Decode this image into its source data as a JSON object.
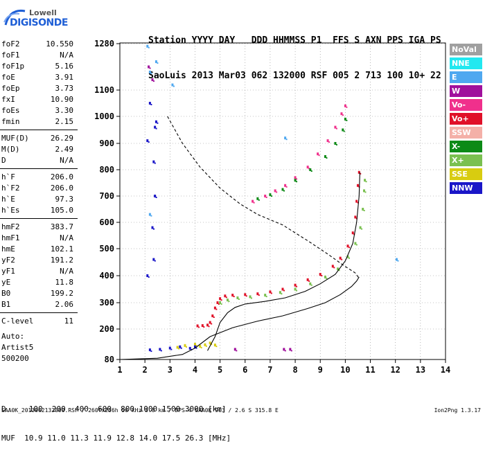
{
  "logo": {
    "line1": "Lowell",
    "line2": "DIGISONDE"
  },
  "header": {
    "labels": "Station YYYY DAY   DDD HHMMSS P1  FFS S AXN PPS IGA PS",
    "values": "SaoLuis 2013 Mar03 062 132000 RSF 005 2 713 100 10+ 22"
  },
  "params": [
    {
      "label": "foF2",
      "value": "10.550"
    },
    {
      "label": "foF1",
      "value": "N/A"
    },
    {
      "label": "foF1p",
      "value": "5.16"
    },
    {
      "label": "foE",
      "value": "3.91"
    },
    {
      "label": "foEp",
      "value": "3.73"
    },
    {
      "label": "fxI",
      "value": "10.90"
    },
    {
      "label": "foEs",
      "value": "3.30"
    },
    {
      "label": "fmin",
      "value": "2.15"
    },
    {
      "sep": true
    },
    {
      "label": "MUF(D)",
      "value": "26.29"
    },
    {
      "label": "M(D)",
      "value": "2.49"
    },
    {
      "label": "D",
      "value": "N/A"
    },
    {
      "sep": true
    },
    {
      "label": "h`F",
      "value": "206.0"
    },
    {
      "label": "h`F2",
      "value": "206.0"
    },
    {
      "label": "h`E",
      "value": "97.3"
    },
    {
      "label": "h`Es",
      "value": "105.0"
    },
    {
      "sep": true
    },
    {
      "label": "hmF2",
      "value": "383.7"
    },
    {
      "label": "hmF1",
      "value": "N/A"
    },
    {
      "label": "hmE",
      "value": "102.1"
    },
    {
      "label": "yF2",
      "value": "191.2"
    },
    {
      "label": "yF1",
      "value": "N/A"
    },
    {
      "label": "yE",
      "value": "11.8"
    },
    {
      "label": "B0",
      "value": "199.2"
    },
    {
      "label": "B1",
      "value": "2.06"
    },
    {
      "sep": true
    },
    {
      "label": "C-level",
      "value": "11"
    }
  ],
  "auto": [
    "Auto:",
    "Artist5",
    "500200"
  ],
  "legend": [
    {
      "label": "NoVal",
      "color": "#a0a0a0"
    },
    {
      "label": "NNE",
      "color": "#22e8f0"
    },
    {
      "label": "E",
      "color": "#4fa8f0"
    },
    {
      "label": "W",
      "color": "#a0109c"
    },
    {
      "label": "Vo-",
      "color": "#f0308c"
    },
    {
      "label": "Vo+",
      "color": "#e01028"
    },
    {
      "label": "SSW",
      "color": "#f4b0a8"
    },
    {
      "label": "X-",
      "color": "#0c8a16"
    },
    {
      "label": "X+",
      "color": "#7ac050"
    },
    {
      "label": "SSE",
      "color": "#d8cc10"
    },
    {
      "label": "NNW",
      "color": "#1a16c8"
    }
  ],
  "footer": {
    "d_row": "D     100  200  400  600  800 1000 1500 3000 [km]",
    "muf_row": "MUF  10.9 11.0 11.3 11.9 12.8 14.0 17.5 26.3 [MHz]",
    "info": "SAA0K_2013062132000.RSF / 260fx256h 50 kHz 5.0 km / DPS-4 SAA0K 903 / 2.6 S 315.8 E",
    "version": "Ion2Png 1.3.17"
  },
  "chart_data": {
    "type": "scatter",
    "xlim": [
      1,
      14
    ],
    "ylim": [
      80,
      1280
    ],
    "x_ticks": [
      "1",
      "2",
      "3",
      "4",
      "5",
      "6",
      "7",
      "8",
      "9",
      "10",
      "11",
      "12",
      "13",
      "14"
    ],
    "y_ticks": [
      "80",
      "200",
      "300",
      "400",
      "500",
      "600",
      "700",
      "800",
      "900",
      "1000",
      "1100",
      "1280"
    ],
    "grid": true,
    "series": [
      {
        "name": "Vo+",
        "color": "#e01028",
        "style": "dots",
        "points": [
          [
            4.1,
            212
          ],
          [
            4.3,
            213
          ],
          [
            4.5,
            215
          ],
          [
            4.6,
            225
          ],
          [
            4.7,
            250
          ],
          [
            4.8,
            280
          ],
          [
            4.9,
            300
          ],
          [
            5.0,
            315
          ],
          [
            5.2,
            325
          ],
          [
            5.5,
            328
          ],
          [
            6.0,
            330
          ],
          [
            6.5,
            333
          ],
          [
            7.0,
            340
          ],
          [
            7.5,
            350
          ],
          [
            8.0,
            365
          ],
          [
            8.5,
            385
          ],
          [
            9.0,
            405
          ],
          [
            9.5,
            435
          ],
          [
            9.8,
            465
          ],
          [
            10.1,
            510
          ],
          [
            10.3,
            560
          ],
          [
            10.4,
            620
          ],
          [
            10.45,
            680
          ],
          [
            10.5,
            740
          ],
          [
            10.55,
            790
          ]
        ]
      },
      {
        "name": "Vo-",
        "color": "#f0308c",
        "style": "dots",
        "points": [
          [
            6.3,
            680
          ],
          [
            6.8,
            700
          ],
          [
            7.2,
            720
          ],
          [
            7.6,
            740
          ],
          [
            8.0,
            770
          ],
          [
            8.5,
            810
          ],
          [
            8.9,
            860
          ],
          [
            9.3,
            910
          ],
          [
            9.6,
            960
          ],
          [
            9.85,
            1010
          ],
          [
            10.0,
            1040
          ]
        ]
      },
      {
        "name": "X+",
        "color": "#7ac050",
        "style": "dots",
        "points": [
          [
            5.0,
            300
          ],
          [
            5.3,
            310
          ],
          [
            5.7,
            318
          ],
          [
            6.2,
            322
          ],
          [
            6.8,
            328
          ],
          [
            7.4,
            338
          ],
          [
            8.0,
            350
          ],
          [
            8.6,
            370
          ],
          [
            9.2,
            395
          ],
          [
            9.7,
            425
          ],
          [
            10.1,
            470
          ],
          [
            10.4,
            520
          ],
          [
            10.6,
            580
          ],
          [
            10.7,
            650
          ],
          [
            10.75,
            720
          ],
          [
            10.78,
            760
          ]
        ]
      },
      {
        "name": "X-",
        "color": "#0c8a16",
        "style": "dots",
        "points": [
          [
            6.5,
            690
          ],
          [
            7.0,
            705
          ],
          [
            7.5,
            725
          ],
          [
            8.0,
            760
          ],
          [
            8.6,
            800
          ],
          [
            9.2,
            850
          ],
          [
            9.6,
            900
          ],
          [
            9.9,
            950
          ],
          [
            10.0,
            990
          ]
        ]
      },
      {
        "name": "SSE",
        "color": "#d8cc10",
        "style": "dots",
        "points": [
          [
            4.0,
            140
          ],
          [
            4.2,
            132
          ],
          [
            4.4,
            138
          ],
          [
            4.6,
            145
          ],
          [
            4.8,
            137
          ],
          [
            3.3,
            128
          ],
          [
            3.6,
            135
          ]
        ]
      },
      {
        "name": "NNW",
        "color": "#1a16c8",
        "style": "dots",
        "points": [
          [
            2.2,
            118
          ],
          [
            2.6,
            120
          ],
          [
            3.0,
            125
          ],
          [
            3.4,
            130
          ],
          [
            3.8,
            124
          ],
          [
            4.0,
            130
          ],
          [
            2.1,
            910
          ],
          [
            2.35,
            830
          ],
          [
            2.4,
            700
          ],
          [
            2.35,
            460
          ],
          [
            2.1,
            400
          ],
          [
            2.3,
            580
          ],
          [
            2.4,
            960
          ],
          [
            2.45,
            980
          ],
          [
            2.2,
            1050
          ]
        ]
      },
      {
        "name": "E",
        "color": "#4fa8f0",
        "style": "dots",
        "points": [
          [
            2.1,
            1270
          ],
          [
            2.2,
            1170
          ],
          [
            3.1,
            1120
          ],
          [
            12.05,
            460
          ],
          [
            7.6,
            920
          ],
          [
            2.2,
            630
          ],
          [
            2.45,
            1210
          ]
        ]
      },
      {
        "name": "W",
        "color": "#a0109c",
        "style": "dots",
        "points": [
          [
            2.15,
            1190
          ],
          [
            2.3,
            1140
          ],
          [
            5.6,
            120
          ],
          [
            7.55,
            120
          ],
          [
            7.8,
            120
          ]
        ]
      },
      {
        "name": "profile",
        "color": "#000000",
        "style": "solid",
        "points": [
          [
            1.0,
            80
          ],
          [
            2.5,
            85
          ],
          [
            3.5,
            100
          ],
          [
            4.0,
            125
          ],
          [
            4.6,
            170
          ],
          [
            5.5,
            205
          ],
          [
            6.5,
            230
          ],
          [
            7.5,
            250
          ],
          [
            8.5,
            278
          ],
          [
            9.2,
            300
          ],
          [
            9.8,
            330
          ],
          [
            10.25,
            360
          ],
          [
            10.45,
            380
          ],
          [
            10.55,
            395
          ]
        ]
      },
      {
        "name": "vtext",
        "color": "#000000",
        "style": "solid",
        "points": [
          [
            4.5,
            115
          ],
          [
            4.8,
            170
          ],
          [
            5.0,
            225
          ],
          [
            5.3,
            262
          ],
          [
            5.6,
            282
          ],
          [
            6.0,
            295
          ],
          [
            6.8,
            305
          ],
          [
            7.6,
            318
          ],
          [
            8.4,
            342
          ],
          [
            9.0,
            370
          ],
          [
            9.6,
            405
          ],
          [
            10.0,
            455
          ],
          [
            10.3,
            520
          ],
          [
            10.45,
            600
          ],
          [
            10.55,
            700
          ],
          [
            10.58,
            790
          ]
        ]
      },
      {
        "name": "muf",
        "color": "#000000",
        "style": "dashed",
        "points": [
          [
            2.9,
            1000
          ],
          [
            3.5,
            900
          ],
          [
            4.2,
            810
          ],
          [
            5.0,
            730
          ],
          [
            5.8,
            670
          ],
          [
            6.5,
            630
          ],
          [
            7.5,
            590
          ],
          [
            8.5,
            530
          ],
          [
            9.3,
            480
          ],
          [
            9.9,
            440
          ],
          [
            10.4,
            410
          ],
          [
            10.55,
            390
          ]
        ]
      }
    ]
  }
}
